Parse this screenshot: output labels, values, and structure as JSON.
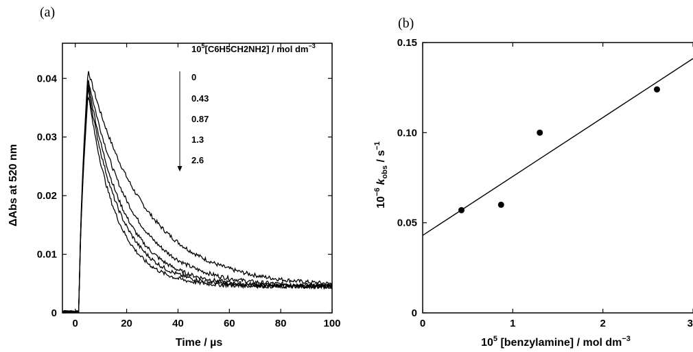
{
  "chart_data": [
    {
      "panel": "(a)",
      "type": "line",
      "xlabel": "Time / µs",
      "ylabel": "ΔAbs at 520 nm",
      "xlim": [
        -5,
        100
      ],
      "ylim": [
        0,
        0.046
      ],
      "xticks": [
        "0",
        "20",
        "40",
        "60",
        "80",
        "100"
      ],
      "yticks": [
        "0",
        "0.01",
        "0.02",
        "0.03",
        "0.04"
      ],
      "legend": {
        "title_prefix": "10",
        "title_exp": "5",
        "title_species": "[C6H5CH2NH2] / mol dm",
        "title_unit_exp": "−3",
        "entries": [
          "0",
          "0.43",
          "0.87",
          "1.3",
          "2.6"
        ]
      },
      "series": [
        {
          "name": "0",
          "peak": 0.0415,
          "tau": 22,
          "rise": 1.2
        },
        {
          "name": "0.43",
          "peak": 0.04,
          "tau": 17,
          "rise": 1.2
        },
        {
          "name": "0.87",
          "peak": 0.0393,
          "tau": 14,
          "rise": 1.2
        },
        {
          "name": "1.3",
          "peak": 0.0385,
          "tau": 12.5,
          "rise": 1.2
        },
        {
          "name": "2.6",
          "peak": 0.0375,
          "tau": 11,
          "rise": 1.2
        }
      ],
      "baseline_end": 0.0045,
      "onset_time": 1.5,
      "peak_time": 5
    },
    {
      "panel": "(b)",
      "type": "scatter",
      "xlabel_prefix": "10",
      "xlabel_exp": "5",
      "xlabel_rest": " [benzylamine] / mol dm",
      "xlabel_unit_exp": "−3",
      "ylabel_prefix": "10",
      "ylabel_exp": "−6",
      "ylabel_k": "k",
      "ylabel_sub": "obs",
      "ylabel_rest": " / s",
      "ylabel_unit_exp": "−1",
      "xlim": [
        0,
        3
      ],
      "ylim": [
        0,
        0.15
      ],
      "xticks": [
        "0",
        "1",
        "2",
        "3"
      ],
      "yticks": [
        "0",
        "0.05",
        "0.10",
        "0.15"
      ],
      "points": [
        {
          "x": 0.43,
          "y": 0.057
        },
        {
          "x": 0.87,
          "y": 0.06
        },
        {
          "x": 1.3,
          "y": 0.1
        },
        {
          "x": 2.6,
          "y": 0.124
        }
      ],
      "fit": {
        "intercept": 0.043,
        "slope": 0.0327
      }
    }
  ]
}
